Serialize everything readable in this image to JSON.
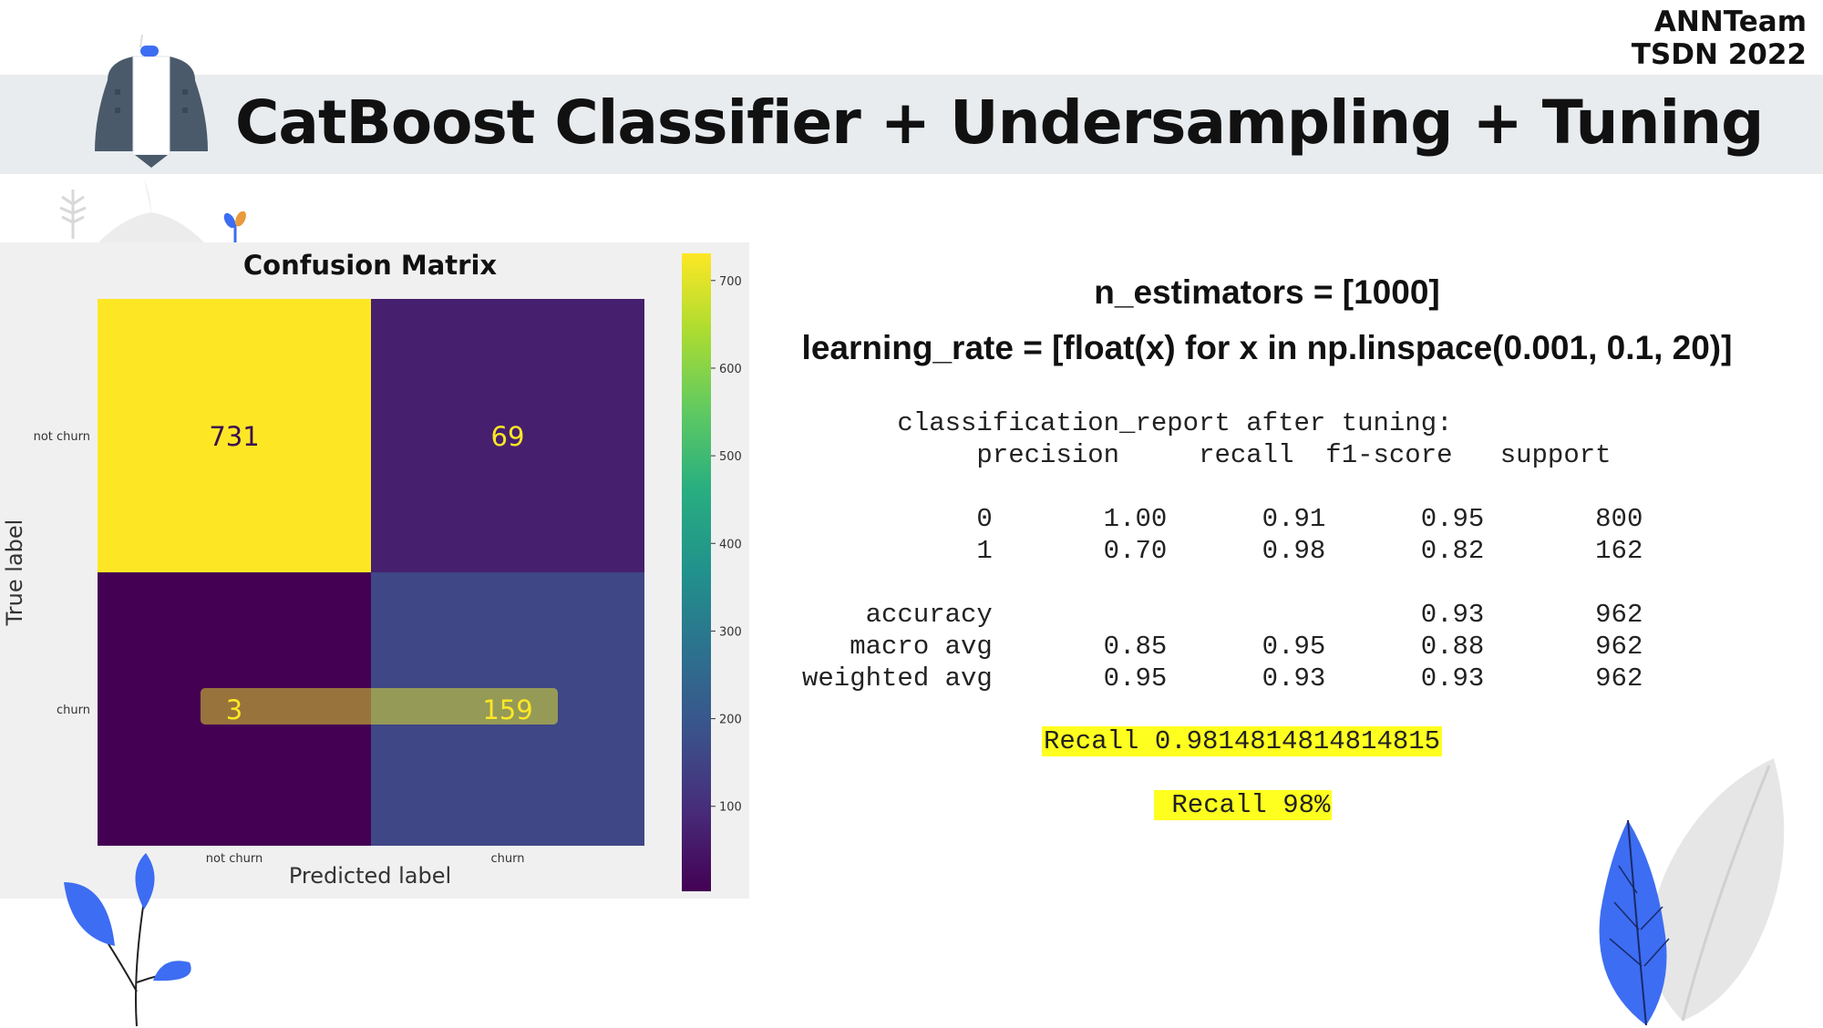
{
  "team": {
    "line1": "ANNTeam",
    "line2": "TSDN 2022"
  },
  "header": {
    "title": "CatBoost Classifier + Undersampling + Tuning"
  },
  "params": {
    "n_estimators": "n_estimators = [1000]",
    "learning_rate": "learning_rate = [float(x) for x in np.linspace(0.001, 0.1, 20)]"
  },
  "report": {
    "title": "classification_report after tuning:",
    "headers": [
      "precision",
      "recall",
      "f1-score",
      "support"
    ],
    "rows": [
      {
        "label": "0",
        "precision": "1.00",
        "recall": "0.91",
        "f1": "0.95",
        "support": "800"
      },
      {
        "label": "1",
        "precision": "0.70",
        "recall": "0.98",
        "f1": "0.82",
        "support": "162"
      },
      {
        "label": "",
        "precision": "",
        "recall": "",
        "f1": "",
        "support": ""
      },
      {
        "label": "accuracy",
        "precision": "",
        "recall": "",
        "f1": "0.93",
        "support": "962"
      },
      {
        "label": "macro avg",
        "precision": "0.85",
        "recall": "0.95",
        "f1": "0.88",
        "support": "962"
      },
      {
        "label": "weighted avg",
        "precision": "0.95",
        "recall": "0.93",
        "f1": "0.93",
        "support": "962"
      }
    ]
  },
  "recall": {
    "line1": "Recall 0.9814814814814815",
    "line2": " Recall 98%"
  },
  "colors": {
    "banner": "#e9ecef",
    "highlight": "#ffff1f",
    "leaf_blue": "#3d6df2",
    "leaf_grey": "#e6e6e6"
  },
  "chart_data": {
    "type": "heatmap",
    "title": "Confusion Matrix",
    "xlabel": "Predicted label",
    "ylabel": "True label",
    "x_categories": [
      "not churn",
      "churn"
    ],
    "y_categories": [
      "not churn",
      "churn"
    ],
    "values": [
      [
        731,
        69
      ],
      [
        3,
        159
      ]
    ],
    "colormap": "viridis",
    "colorbar": {
      "min": 3,
      "max": 731,
      "ticks": [
        100,
        200,
        300,
        400,
        500,
        600,
        700
      ]
    },
    "annotation": "highlight band over churn row"
  }
}
